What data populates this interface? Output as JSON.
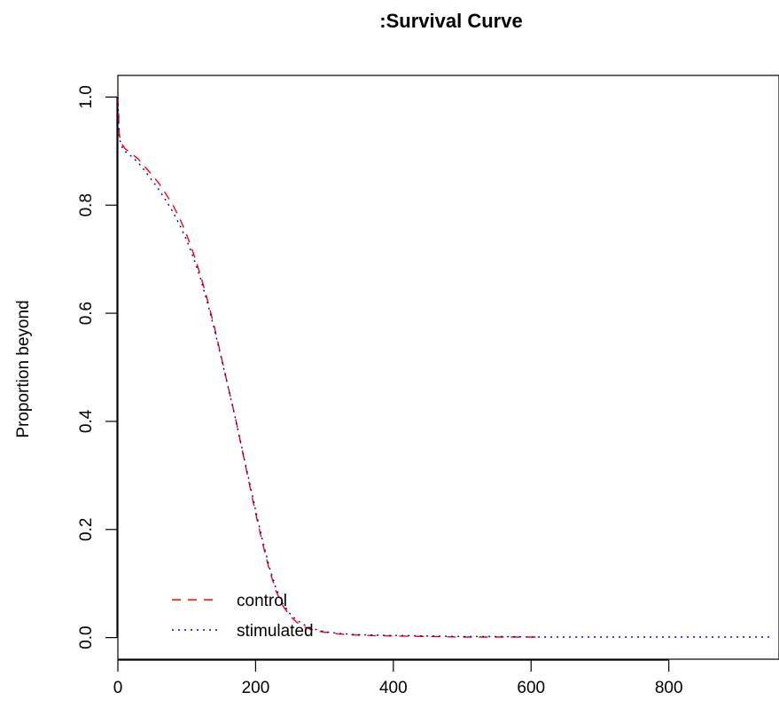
{
  "chart_data": {
    "type": "line",
    "title": ":Survival Curve",
    "xlabel": "",
    "ylabel": "Proportion beyond",
    "xlim": [
      0,
      960
    ],
    "ylim": [
      -0.04,
      1.04
    ],
    "xticks": [
      0,
      200,
      400,
      600,
      800
    ],
    "yticks": [
      0.0,
      0.2,
      0.4,
      0.6,
      0.8,
      1.0
    ],
    "ytick_labels": [
      "0.0",
      "0.2",
      "0.4",
      "0.6",
      "0.8",
      "1.0"
    ],
    "grid": false,
    "legend_position": "bottom-left",
    "series": [
      {
        "name": "control",
        "color": "#ff0000",
        "dash": "dashed",
        "x": [
          0,
          1,
          2,
          5,
          10,
          20,
          30,
          40,
          50,
          60,
          70,
          80,
          90,
          100,
          110,
          120,
          130,
          140,
          150,
          160,
          170,
          180,
          190,
          200,
          210,
          220,
          230,
          240,
          250,
          260,
          270,
          280,
          290,
          300,
          320,
          340,
          360,
          400,
          450,
          500,
          550,
          610
        ],
        "y": [
          1.0,
          0.97,
          0.93,
          0.915,
          0.905,
          0.895,
          0.885,
          0.87,
          0.855,
          0.84,
          0.82,
          0.8,
          0.775,
          0.745,
          0.71,
          0.67,
          0.625,
          0.575,
          0.52,
          0.465,
          0.41,
          0.35,
          0.29,
          0.23,
          0.175,
          0.125,
          0.085,
          0.058,
          0.04,
          0.028,
          0.02,
          0.015,
          0.012,
          0.01,
          0.007,
          0.005,
          0.004,
          0.003,
          0.002,
          0.001,
          0.001,
          0.001
        ]
      },
      {
        "name": "stimulated",
        "color": "#0000cc",
        "dash": "dotted",
        "x": [
          0,
          1,
          2,
          5,
          10,
          20,
          30,
          40,
          50,
          60,
          70,
          80,
          90,
          100,
          110,
          120,
          130,
          140,
          150,
          160,
          170,
          180,
          190,
          200,
          210,
          220,
          230,
          240,
          250,
          260,
          270,
          280,
          290,
          300,
          320,
          340,
          360,
          400,
          450,
          500,
          550,
          610,
          700,
          800,
          900,
          950
        ],
        "y": [
          1.0,
          0.96,
          0.925,
          0.91,
          0.9,
          0.89,
          0.878,
          0.862,
          0.845,
          0.828,
          0.808,
          0.787,
          0.763,
          0.735,
          0.702,
          0.664,
          0.62,
          0.571,
          0.518,
          0.464,
          0.409,
          0.352,
          0.294,
          0.236,
          0.18,
          0.13,
          0.09,
          0.062,
          0.044,
          0.032,
          0.024,
          0.018,
          0.014,
          0.011,
          0.008,
          0.006,
          0.005,
          0.004,
          0.003,
          0.002,
          0.002,
          0.001,
          0.001,
          0.001,
          0.001,
          0.001
        ]
      }
    ]
  }
}
